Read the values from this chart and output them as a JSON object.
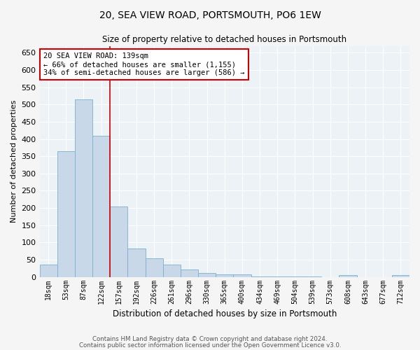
{
  "title": "20, SEA VIEW ROAD, PORTSMOUTH, PO6 1EW",
  "subtitle": "Size of property relative to detached houses in Portsmouth",
  "xlabel": "Distribution of detached houses by size in Portsmouth",
  "ylabel": "Number of detached properties",
  "bar_color": "#c8d8e8",
  "bar_edge_color": "#7ab0cc",
  "categories": [
    "18sqm",
    "53sqm",
    "87sqm",
    "122sqm",
    "157sqm",
    "192sqm",
    "226sqm",
    "261sqm",
    "296sqm",
    "330sqm",
    "365sqm",
    "400sqm",
    "434sqm",
    "469sqm",
    "504sqm",
    "539sqm",
    "573sqm",
    "608sqm",
    "643sqm",
    "677sqm",
    "712sqm"
  ],
  "values": [
    35,
    365,
    515,
    410,
    205,
    82,
    55,
    35,
    22,
    12,
    8,
    8,
    2,
    2,
    1,
    1,
    0,
    5,
    0,
    0,
    5
  ],
  "ylim": [
    0,
    670
  ],
  "yticks": [
    0,
    50,
    100,
    150,
    200,
    250,
    300,
    350,
    400,
    450,
    500,
    550,
    600,
    650
  ],
  "vline_x": 3.5,
  "vline_color": "#cc0000",
  "annotation_text": "20 SEA VIEW ROAD: 139sqm\n← 66% of detached houses are smaller (1,155)\n34% of semi-detached houses are larger (586) →",
  "annotation_box_color": "#ffffff",
  "annotation_box_edge": "#cc0000",
  "bg_color": "#edf2f7",
  "grid_color": "#ffffff",
  "fig_bg_color": "#f5f5f5",
  "footer_line1": "Contains HM Land Registry data © Crown copyright and database right 2024.",
  "footer_line2": "Contains public sector information licensed under the Open Government Licence v3.0."
}
